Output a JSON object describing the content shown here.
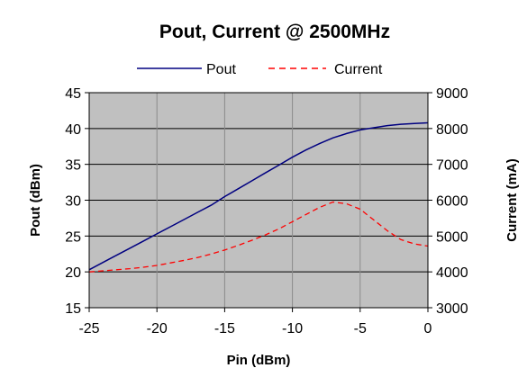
{
  "chart_data": {
    "type": "line",
    "title": "Pout, Current @ 2500MHz",
    "xlabel": "Pin (dBm)",
    "ylabel": "Pout (dBm)",
    "y2label": "Current (mA)",
    "xlim": [
      -25,
      0
    ],
    "ylim": [
      15,
      45
    ],
    "y2lim": [
      3000,
      9000
    ],
    "xticks": [
      "-25",
      "-20",
      "-15",
      "-10",
      "-5",
      "0"
    ],
    "yticks": [
      "15",
      "20",
      "25",
      "30",
      "35",
      "40",
      "45"
    ],
    "y2ticks": [
      "3000",
      "4000",
      "5000",
      "6000",
      "7000",
      "8000",
      "9000"
    ],
    "grid": true,
    "legend_position": "top-center",
    "plot_background": "#c0c0c0",
    "series": [
      {
        "name": "Pout",
        "axis": "left",
        "color": "#000080",
        "style": "solid",
        "x": [
          -25,
          -24,
          -23,
          -22,
          -21,
          -20,
          -19,
          -18,
          -17,
          -16,
          -15,
          -14,
          -13,
          -12,
          -11,
          -10,
          -9,
          -8,
          -7,
          -6,
          -5,
          -4,
          -3,
          -2,
          -1,
          0
        ],
        "values": [
          20.3,
          21.3,
          22.3,
          23.3,
          24.3,
          25.3,
          26.3,
          27.3,
          28.3,
          29.3,
          30.5,
          31.6,
          32.7,
          33.8,
          34.9,
          36.0,
          37.0,
          37.9,
          38.7,
          39.3,
          39.8,
          40.1,
          40.4,
          40.6,
          40.7,
          40.8
        ]
      },
      {
        "name": "Current",
        "axis": "right",
        "color": "#ff0000",
        "style": "dashed",
        "x": [
          -25,
          -24,
          -23,
          -22,
          -21,
          -20,
          -19,
          -18,
          -17,
          -16,
          -15,
          -14,
          -13,
          -12,
          -11,
          -10,
          -9,
          -8,
          -7,
          -6,
          -5,
          -4,
          -3,
          -2,
          -1,
          0
        ],
        "values": [
          4000,
          4030,
          4060,
          4090,
          4130,
          4180,
          4250,
          4320,
          4400,
          4500,
          4610,
          4740,
          4880,
          5030,
          5200,
          5400,
          5600,
          5800,
          5950,
          5900,
          5750,
          5450,
          5150,
          4900,
          4780,
          4720
        ]
      }
    ]
  }
}
